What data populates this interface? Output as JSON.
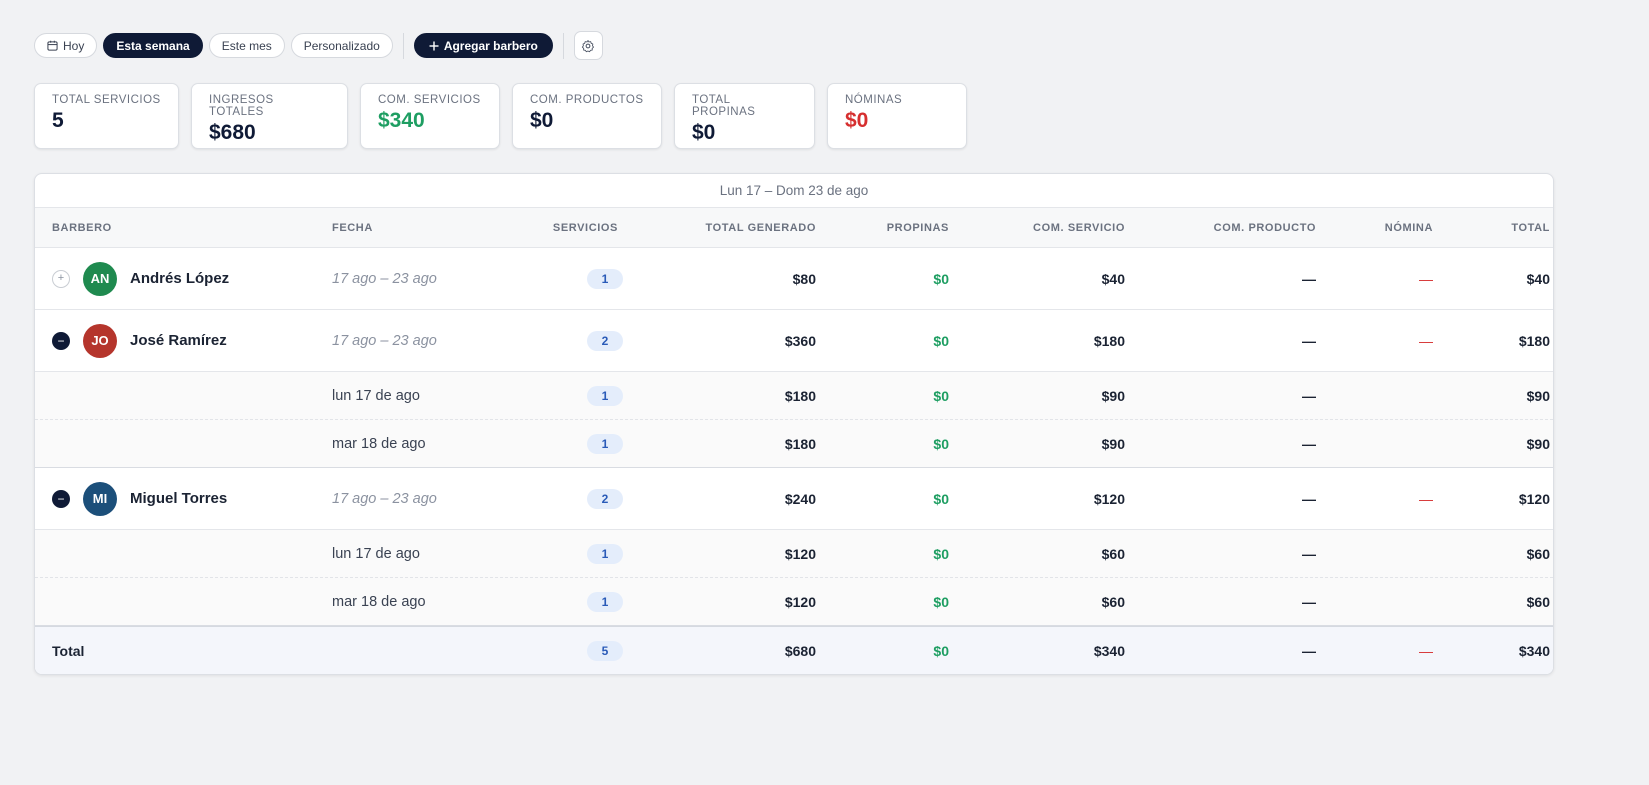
{
  "toolbar": {
    "filters": [
      "Hoy",
      "Esta semana",
      "Este mes",
      "Personalizado"
    ],
    "add_button": "Agregar barbero",
    "icons": {
      "calendar": "calendar-icon",
      "plus": "plus-icon",
      "settings": "gear-icon"
    }
  },
  "kpis": [
    {
      "label": "TOTAL SERVICIOS",
      "value": "5"
    },
    {
      "label": "INGRESOS TOTALES",
      "value": "$680"
    },
    {
      "label": "COM. SERVICIOS",
      "value": "$340"
    },
    {
      "label": "COM. PRODUCTOS",
      "value": "$0"
    },
    {
      "label": "TOTAL PROPINAS",
      "value": "$0"
    },
    {
      "label": "NÓMINAS",
      "value": "$0"
    }
  ],
  "table": {
    "period": "Lun 17 – Dom 23 de ago",
    "headers": [
      "BARBERO",
      "FECHA",
      "SERVICIOS",
      "TOTAL GENERADO",
      "PROPINAS",
      "COM. SERVICIO",
      "COM. PRODUCTO",
      "NÓMINA",
      "TOTAL"
    ],
    "barbers": [
      {
        "initials": "AN",
        "name": "Andrés López",
        "date": "17 ago – 23 ago",
        "services": "1",
        "generated": "$80",
        "tips": "$0",
        "com_service": "$40",
        "com_product": "—",
        "payroll": "—",
        "total": "$40",
        "expanded": false,
        "color": "#1f8a4f",
        "days": []
      },
      {
        "initials": "JO",
        "name": "José Ramírez",
        "date": "17 ago – 23 ago",
        "services": "2",
        "generated": "$360",
        "tips": "$0",
        "com_service": "$180",
        "com_product": "—",
        "payroll": "—",
        "total": "$180",
        "expanded": true,
        "color": "#b5352c",
        "days": [
          {
            "date": "lun 17 de ago",
            "services": "1",
            "generated": "$180",
            "tips": "$0",
            "com_service": "$90",
            "com_product": "—",
            "total": "$90"
          },
          {
            "date": "mar 18 de ago",
            "services": "1",
            "generated": "$180",
            "tips": "$0",
            "com_service": "$90",
            "com_product": "—",
            "total": "$90"
          }
        ]
      },
      {
        "initials": "MI",
        "name": "Miguel Torres",
        "date": "17 ago – 23 ago",
        "services": "2",
        "generated": "$240",
        "tips": "$0",
        "com_service": "$120",
        "com_product": "—",
        "payroll": "—",
        "total": "$120",
        "expanded": true,
        "color": "#1c4f7a",
        "days": [
          {
            "date": "lun 17 de ago",
            "services": "1",
            "generated": "$120",
            "tips": "$0",
            "com_service": "$60",
            "com_product": "—",
            "total": "$60"
          },
          {
            "date": "mar 18 de ago",
            "services": "1",
            "generated": "$120",
            "tips": "$0",
            "com_service": "$60",
            "com_product": "—",
            "total": "$60"
          }
        ]
      }
    ],
    "totals": {
      "label": "Total",
      "services": "5",
      "generated": "$680",
      "tips": "$0",
      "com_service": "$340",
      "com_product": "—",
      "payroll": "—",
      "total": "$340"
    }
  },
  "colors": {
    "navy": "#0f1a36",
    "green": "#1e9e62",
    "red": "#d62f2f",
    "badge_bg": "#e4edfb"
  }
}
